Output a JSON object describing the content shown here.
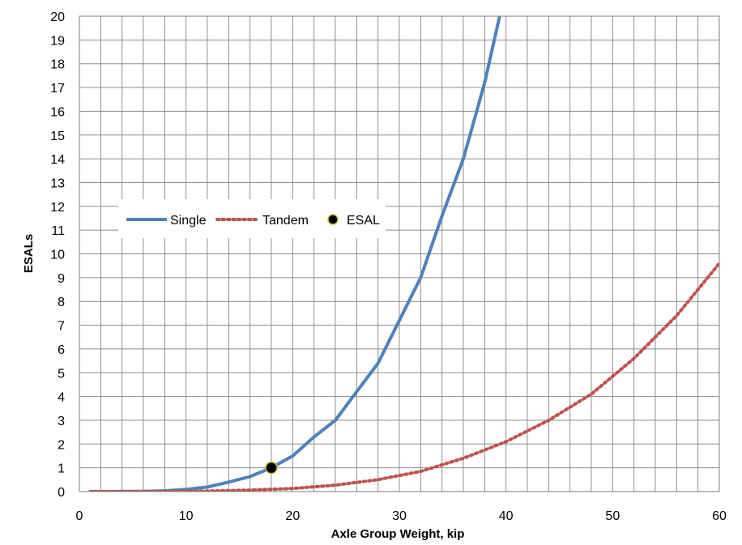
{
  "chart_data": {
    "type": "line",
    "title": "",
    "xlabel": "Axle Group Weight, kip",
    "ylabel": "ESALs",
    "xlim": [
      0,
      60
    ],
    "ylim": [
      0,
      20
    ],
    "xticks": [
      0,
      10,
      20,
      30,
      40,
      50,
      60
    ],
    "yticks": [
      0,
      1,
      2,
      3,
      4,
      5,
      6,
      7,
      8,
      9,
      10,
      11,
      12,
      13,
      14,
      15,
      16,
      17,
      18,
      19,
      20
    ],
    "grid": true,
    "minor_x_grid_step": 2,
    "legend_position": "middle-left",
    "series": [
      {
        "name": "Single",
        "style": "solid",
        "color": "#4f81bd",
        "x": [
          1,
          2,
          4,
          6,
          8,
          10,
          12,
          14,
          16,
          18,
          20,
          22,
          24,
          26,
          28,
          30,
          32,
          34,
          36,
          38,
          39.4
        ],
        "y": [
          0.0002,
          0.0003,
          0.002,
          0.01,
          0.03,
          0.09,
          0.19,
          0.4,
          0.63,
          1.0,
          1.5,
          2.3,
          3.0,
          4.2,
          5.4,
          7.2,
          9.0,
          11.6,
          14.0,
          17.2,
          20.0
        ]
      },
      {
        "name": "Tandem",
        "style": "dotted",
        "color": "#c0504d",
        "x": [
          1,
          4,
          8,
          12,
          16,
          20,
          24,
          28,
          32,
          36,
          40,
          44,
          48,
          52,
          56,
          60
        ],
        "y": [
          0,
          0.0003,
          0.006,
          0.02,
          0.06,
          0.13,
          0.27,
          0.5,
          0.85,
          1.4,
          2.1,
          3.0,
          4.1,
          5.6,
          7.4,
          9.6
        ]
      },
      {
        "name": "ESAL",
        "style": "marker",
        "color": "#000000",
        "x": [
          18
        ],
        "y": [
          1
        ]
      }
    ]
  }
}
